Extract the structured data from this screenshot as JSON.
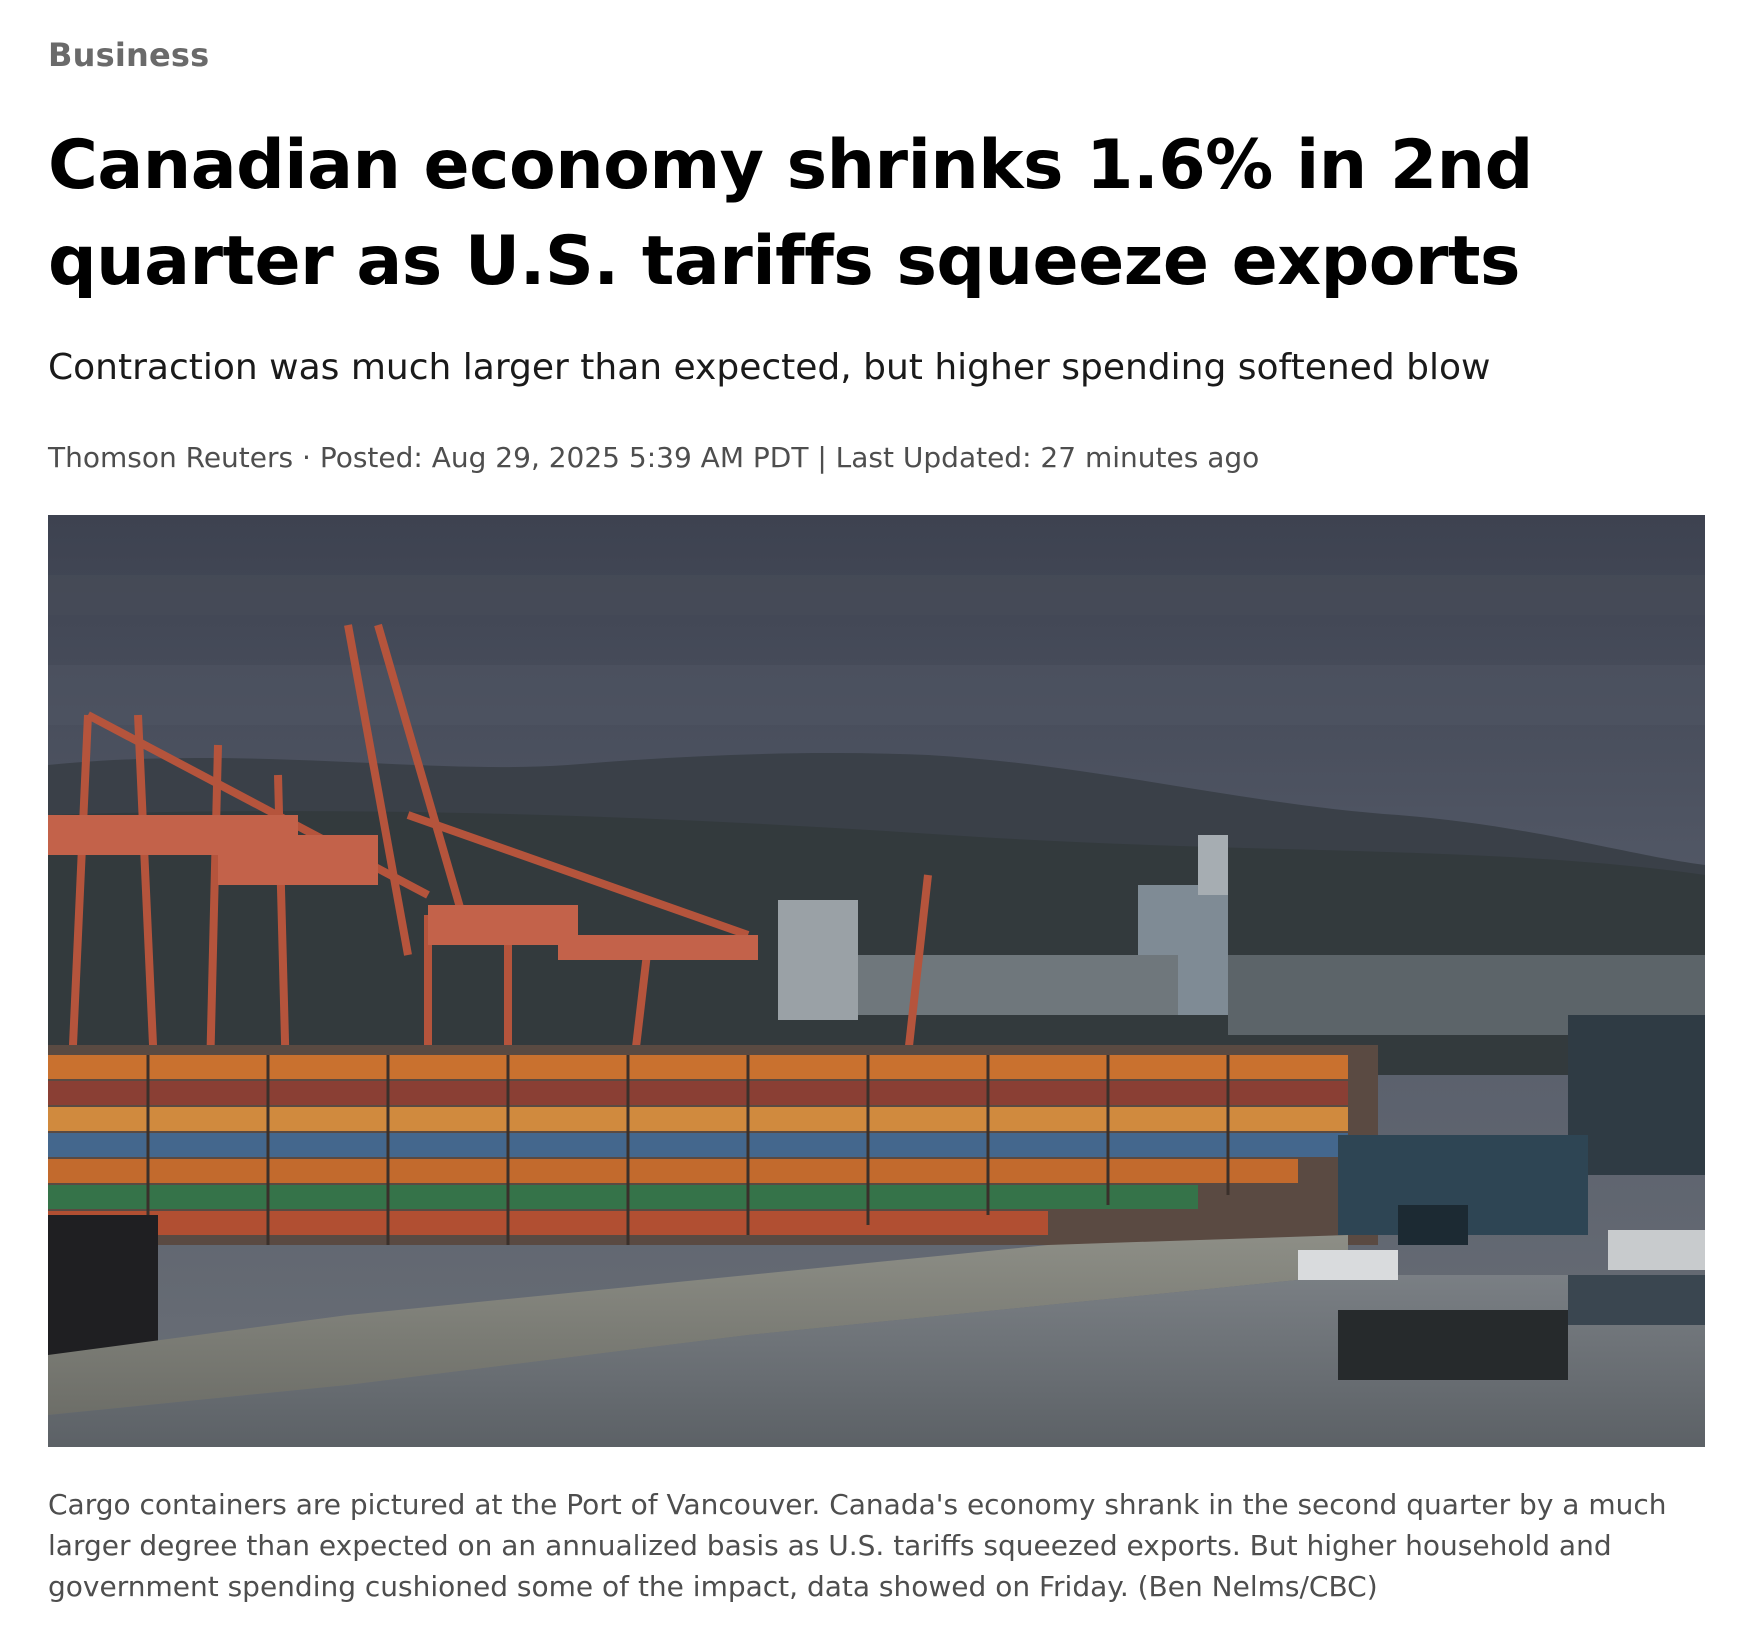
{
  "article": {
    "category": "Business",
    "headline": "Canadian economy shrinks 1.6% in 2nd quarter as U.S. tariffs squeeze exports",
    "deck": "Contraction was much larger than expected, but higher spending softened blow",
    "byline": {
      "author": "Thomson Reuters",
      "separator": " · ",
      "posted_label": "Posted: ",
      "posted_date": "Aug 29, 2025 5:39 AM PDT",
      "divider": " | ",
      "updated_label": "Last Updated: ",
      "updated_value": "27 minutes ago"
    },
    "photo": {
      "alt": "Cargo containers at the Port of Vancouver",
      "caption": "Cargo containers are pictured at the Port of Vancouver. Canada's economy shrank in the second quarter by a much larger degree than expected on an annualized basis as U.S. tariffs squeezed exports. But higher household and government spending cushioned some of the impact, data showed on Friday. (Ben Nelms/CBC)"
    }
  },
  "colors": {
    "sky": "#4b5161",
    "mountain": "#3a4148",
    "crane": "#b5543c",
    "container_orange": "#c9712f",
    "water": "#6d7378"
  }
}
